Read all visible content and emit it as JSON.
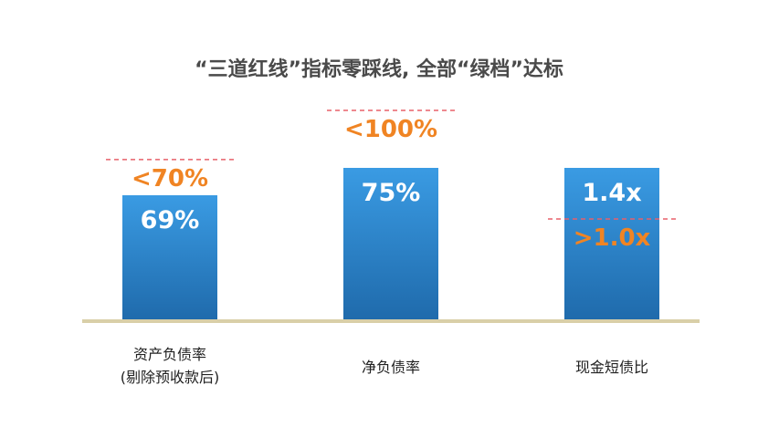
{
  "chart_data": {
    "type": "bar",
    "title": "“三道红线”指标零踩线, 全部“绿档”达标",
    "categories": [
      "资产负债率\n(剔除预收款后)",
      "净负债率",
      "现金短债比"
    ],
    "values": [
      69,
      75,
      1.4
    ],
    "value_labels": [
      "69%",
      "75%",
      "1.4x"
    ],
    "thresholds": [
      {
        "value": 70,
        "label": "<70%"
      },
      {
        "value": 100,
        "label": "<100%"
      },
      {
        "value": 1.0,
        "label": ">1.0x"
      }
    ],
    "grid": false,
    "colors": {
      "bar_top": "#3a9be3",
      "bar_bottom": "#1f6aab",
      "threshold_line": "#e8606a",
      "threshold_text": "#f08423",
      "baseline": "#d9cfa8",
      "value_text": "#ffffff"
    }
  }
}
